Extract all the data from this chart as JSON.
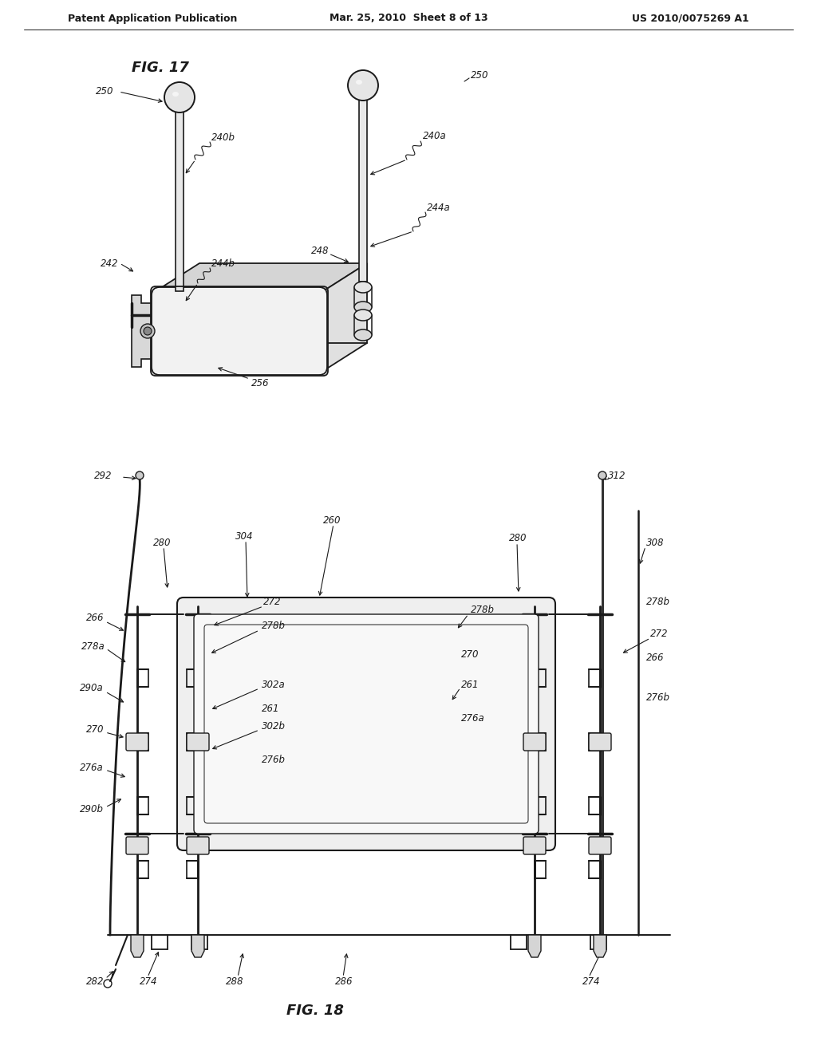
{
  "background_color": "#ffffff",
  "header_left": "Patent Application Publication",
  "header_center": "Mar. 25, 2010  Sheet 8 of 13",
  "header_right": "US 2010/0075269 A1",
  "fig17_label": "FIG. 17",
  "fig18_label": "FIG. 18",
  "line_color": "#1a1a1a",
  "text_color": "#1a1a1a",
  "label_fontsize": 8.5,
  "header_fontsize": 9,
  "fig_label_fontsize": 13
}
